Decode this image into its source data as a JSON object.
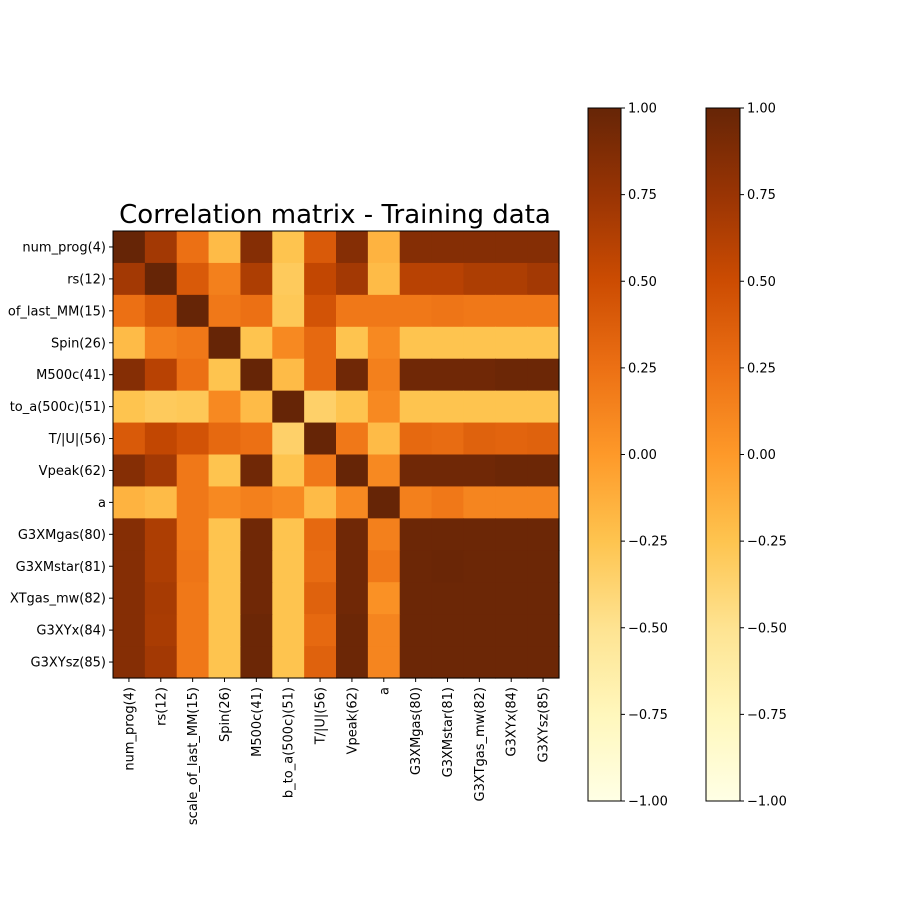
{
  "chart_data": {
    "type": "heatmap",
    "title": "Correlation matrix - Training data",
    "row_labels": [
      "num_prog(4)",
      "rs(12)",
      "of_last_MM(15)",
      "Spin(26)",
      "M500c(41)",
      "to_a(500c)(51)",
      "T/|U|(56)",
      "Vpeak(62)",
      "a",
      "G3XMgas(80)",
      "G3XMstar(81)",
      "XTgas_mw(82)",
      "G3XYx(84)",
      "G3XYsz(85)"
    ],
    "col_labels": [
      "num_prog(4)",
      "rs(12)",
      "scale_of_last_MM(15)",
      "Spin(26)",
      "M500c(41)",
      "b_to_a(500c)(51)",
      "T/|U|(56)",
      "Vpeak(62)",
      "a",
      "G3XMgas(80)",
      "G3XMstar(81)",
      "G3XTgas_mw(82)",
      "G3XYx(84)",
      "G3XYsz(85)"
    ],
    "values": [
      [
        1.0,
        0.7,
        0.25,
        -0.2,
        0.85,
        -0.25,
        0.4,
        0.85,
        -0.15,
        0.85,
        0.85,
        0.85,
        0.85,
        0.85
      ],
      [
        0.7,
        1.0,
        0.4,
        0.15,
        0.65,
        -0.3,
        0.55,
        0.7,
        -0.2,
        0.6,
        0.6,
        0.65,
        0.65,
        0.7
      ],
      [
        0.25,
        0.4,
        1.0,
        0.2,
        0.25,
        -0.28,
        0.45,
        0.2,
        0.2,
        0.2,
        0.22,
        0.2,
        0.2,
        0.2
      ],
      [
        -0.2,
        0.15,
        0.2,
        1.0,
        -0.25,
        0.1,
        0.3,
        -0.25,
        0.1,
        -0.25,
        -0.25,
        -0.25,
        -0.25,
        -0.25
      ],
      [
        0.85,
        0.6,
        0.25,
        -0.25,
        1.0,
        -0.2,
        0.3,
        0.95,
        0.15,
        0.95,
        0.95,
        0.95,
        0.97,
        0.97
      ],
      [
        -0.25,
        -0.3,
        -0.28,
        0.1,
        -0.2,
        1.0,
        -0.35,
        -0.25,
        0.1,
        -0.25,
        -0.25,
        -0.25,
        -0.25,
        -0.25
      ],
      [
        0.4,
        0.55,
        0.45,
        0.3,
        0.25,
        -0.35,
        1.0,
        0.2,
        -0.2,
        0.3,
        0.28,
        0.35,
        0.33,
        0.35
      ],
      [
        0.85,
        0.7,
        0.2,
        -0.25,
        0.95,
        -0.25,
        0.2,
        1.0,
        0.1,
        0.95,
        0.95,
        0.95,
        0.97,
        0.97
      ],
      [
        -0.15,
        -0.2,
        0.2,
        0.1,
        0.15,
        0.1,
        -0.2,
        0.1,
        1.0,
        0.15,
        0.2,
        0.12,
        0.12,
        0.12
      ],
      [
        0.85,
        0.65,
        0.2,
        -0.25,
        0.95,
        -0.25,
        0.3,
        0.95,
        0.15,
        0.97,
        0.97,
        0.97,
        0.97,
        0.97
      ],
      [
        0.85,
        0.65,
        0.22,
        -0.25,
        0.95,
        -0.25,
        0.28,
        0.95,
        0.2,
        0.97,
        0.98,
        0.97,
        0.97,
        0.97
      ],
      [
        0.85,
        0.68,
        0.2,
        -0.25,
        0.95,
        -0.25,
        0.35,
        0.95,
        0.05,
        0.97,
        0.97,
        0.97,
        0.97,
        0.97
      ],
      [
        0.85,
        0.67,
        0.2,
        -0.25,
        0.97,
        -0.25,
        0.3,
        0.97,
        0.12,
        0.97,
        0.97,
        0.97,
        0.97,
        0.97
      ],
      [
        0.85,
        0.7,
        0.2,
        -0.25,
        0.97,
        -0.25,
        0.35,
        0.97,
        0.12,
        0.97,
        0.97,
        0.97,
        0.97,
        0.97
      ]
    ],
    "vmin": -1.0,
    "vmax": 1.0,
    "colormap": "YlOrBr",
    "colorbars": [
      {
        "ticks": [
          "1.00",
          "0.75",
          "0.50",
          "0.25",
          "0.00",
          "−0.25",
          "−0.50",
          "−0.75",
          "−1.00"
        ]
      },
      {
        "ticks": [
          "1.00",
          "0.75",
          "0.50",
          "0.25",
          "0.00",
          "−0.25",
          "−0.50",
          "−0.75",
          "−1.00"
        ]
      }
    ]
  }
}
